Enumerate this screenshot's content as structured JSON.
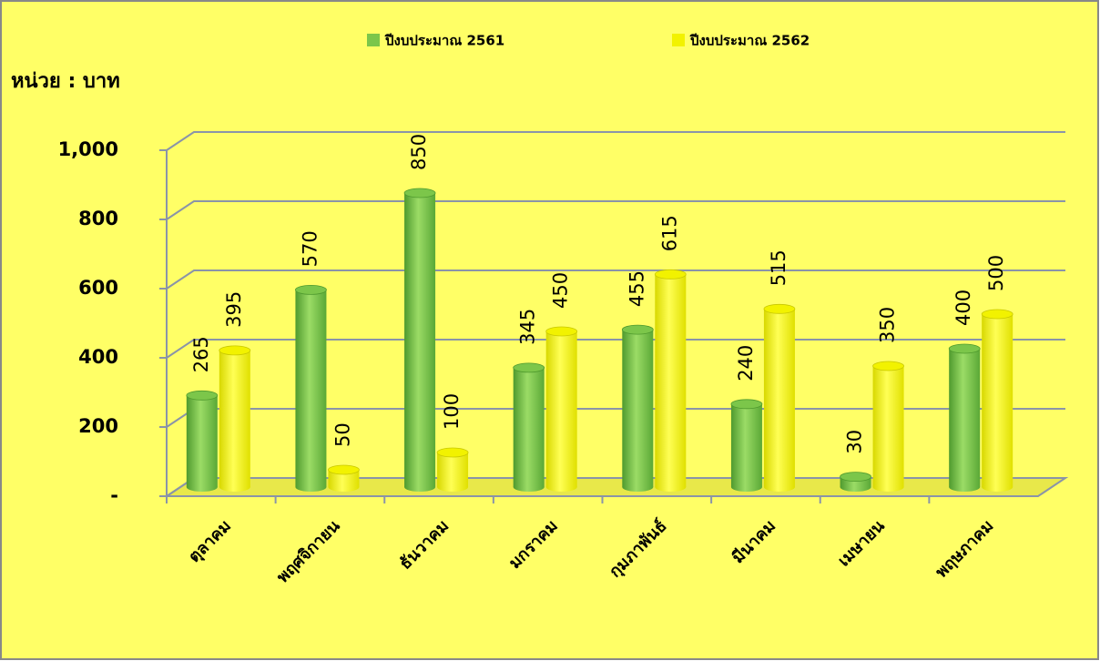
{
  "chart_data": {
    "type": "bar3d",
    "y_label": "หน่วย : บาท",
    "categories": [
      "ตุลาคม",
      "พฤศจิกายน",
      "ธันวาคม",
      "มกราคม",
      "กุมภาพันธ์",
      "มีนาคม",
      "เมษายน",
      "พฤษภาคม"
    ],
    "series": [
      {
        "name": "ปีงบประมาณ 2561",
        "color": "#7cc64a",
        "values": [
          265,
          570,
          850,
          345,
          455,
          240,
          30,
          400
        ]
      },
      {
        "name": "ปีงบประมาณ 2562",
        "color": "#f2f200",
        "values": [
          395,
          50,
          100,
          450,
          615,
          515,
          350,
          500
        ]
      }
    ],
    "ylim": [
      0,
      1000
    ],
    "yticks": [
      {
        "value": 0,
        "label": "-"
      },
      200,
      400,
      600,
      800,
      {
        "value": 1000,
        "label": "1,000"
      }
    ],
    "grid": true,
    "legend": "top",
    "background": "#ffff66"
  }
}
